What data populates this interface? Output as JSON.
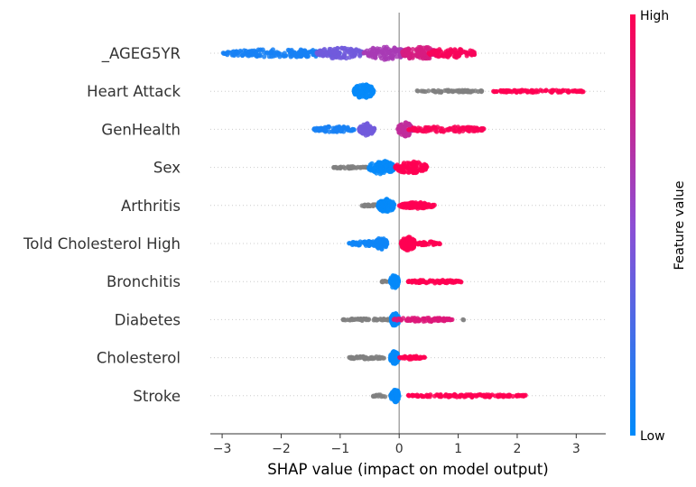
{
  "chart_data": {
    "type": "scatter",
    "subtype": "shap-beeswarm",
    "xlabel": "SHAP value (impact on model output)",
    "xlim": [
      -3.2,
      3.5
    ],
    "xticks": [
      -3,
      -2,
      -1,
      0,
      1,
      2,
      3
    ],
    "xtick_labels": [
      "−3",
      "−2",
      "−1",
      "0",
      "1",
      "2",
      "3"
    ],
    "colorbar": {
      "label": "Feature value",
      "high_label": "High",
      "low_label": "Low",
      "low_color": "#008bfb",
      "high_color": "#ff0052"
    },
    "colors": {
      "missing": "#808080",
      "axis": "#333333",
      "zero_line": "#999999",
      "row_guide": "#cccccc"
    },
    "features": [
      {
        "name": "_AGEG5YR",
        "clusters": [
          {
            "center": -2.0,
            "halfwidth": 1.0,
            "height": 0.2,
            "value": 0.08,
            "n": 170
          },
          {
            "center": -1.0,
            "halfwidth": 0.4,
            "height": 0.28,
            "value": 0.4,
            "n": 90
          },
          {
            "center": -0.25,
            "halfwidth": 0.35,
            "height": 0.34,
            "value": 0.62,
            "n": 110
          },
          {
            "center": 0.35,
            "halfwidth": 0.3,
            "height": 0.34,
            "value": 0.82,
            "n": 110
          },
          {
            "center": 0.9,
            "halfwidth": 0.4,
            "height": 0.24,
            "value": 0.97,
            "n": 90
          }
        ]
      },
      {
        "name": "Heart Attack",
        "clusters": [
          {
            "center": -0.6,
            "halfwidth": 0.17,
            "height": 0.36,
            "value": 0.02,
            "n": 110
          },
          {
            "center": 0.85,
            "halfwidth": 0.55,
            "height": 0.06,
            "value": null,
            "n": 70
          },
          {
            "center": 2.35,
            "halfwidth": 0.8,
            "height": 0.06,
            "value": 1.0,
            "n": 100
          }
        ]
      },
      {
        "name": "GenHealth",
        "clusters": [
          {
            "center": -1.1,
            "halfwidth": 0.35,
            "height": 0.15,
            "value": 0.08,
            "n": 70
          },
          {
            "center": -0.55,
            "halfwidth": 0.13,
            "height": 0.32,
            "value": 0.4,
            "n": 80
          },
          {
            "center": 0.1,
            "halfwidth": 0.12,
            "height": 0.36,
            "value": 0.72,
            "n": 80
          },
          {
            "center": 0.8,
            "halfwidth": 0.65,
            "height": 0.14,
            "value": 0.98,
            "n": 100
          }
        ]
      },
      {
        "name": "Sex",
        "clusters": [
          {
            "center": -0.85,
            "halfwidth": 0.3,
            "height": 0.05,
            "value": null,
            "n": 40
          },
          {
            "center": -0.3,
            "halfwidth": 0.22,
            "height": 0.36,
            "value": 0.02,
            "n": 120
          },
          {
            "center": 0.2,
            "halfwidth": 0.27,
            "height": 0.3,
            "value": 1.0,
            "n": 110
          }
        ]
      },
      {
        "name": "Arthritis",
        "clusters": [
          {
            "center": -0.45,
            "halfwidth": 0.22,
            "height": 0.05,
            "value": null,
            "n": 30
          },
          {
            "center": -0.22,
            "halfwidth": 0.14,
            "height": 0.34,
            "value": 0.02,
            "n": 100
          },
          {
            "center": 0.3,
            "halfwidth": 0.3,
            "height": 0.16,
            "value": 1.0,
            "n": 90
          }
        ]
      },
      {
        "name": "Told Cholesterol High",
        "clusters": [
          {
            "center": -0.55,
            "halfwidth": 0.3,
            "height": 0.12,
            "value": 0.05,
            "n": 60
          },
          {
            "center": -0.3,
            "halfwidth": 0.1,
            "height": 0.3,
            "value": 0.05,
            "n": 50
          },
          {
            "center": 0.15,
            "halfwidth": 0.12,
            "height": 0.36,
            "value": 1.0,
            "n": 90
          },
          {
            "center": 0.5,
            "halfwidth": 0.2,
            "height": 0.1,
            "value": 1.0,
            "n": 40
          }
        ]
      },
      {
        "name": "Bronchitis",
        "clusters": [
          {
            "center": -0.22,
            "halfwidth": 0.08,
            "height": 0.05,
            "value": null,
            "n": 10
          },
          {
            "center": -0.08,
            "halfwidth": 0.07,
            "height": 0.34,
            "value": 0.02,
            "n": 80
          },
          {
            "center": 0.6,
            "halfwidth": 0.45,
            "height": 0.08,
            "value": 1.0,
            "n": 100
          }
        ]
      },
      {
        "name": "Diabetes",
        "clusters": [
          {
            "center": -0.55,
            "halfwidth": 0.4,
            "height": 0.05,
            "value": null,
            "n": 60
          },
          {
            "center": -0.07,
            "halfwidth": 0.07,
            "height": 0.34,
            "value": 0.02,
            "n": 80
          },
          {
            "center": 0.4,
            "halfwidth": 0.5,
            "height": 0.1,
            "value": 0.85,
            "n": 90
          },
          {
            "center": 1.1,
            "halfwidth": 0.02,
            "height": 0.02,
            "value": null,
            "n": 2
          }
        ]
      },
      {
        "name": "Cholesterol",
        "clusters": [
          {
            "center": -0.55,
            "halfwidth": 0.3,
            "height": 0.07,
            "value": null,
            "n": 60
          },
          {
            "center": -0.08,
            "halfwidth": 0.07,
            "height": 0.34,
            "value": 0.02,
            "n": 80
          },
          {
            "center": 0.22,
            "halfwidth": 0.22,
            "height": 0.08,
            "value": 1.0,
            "n": 40
          }
        ]
      },
      {
        "name": "Stroke",
        "clusters": [
          {
            "center": -0.25,
            "halfwidth": 0.2,
            "height": 0.05,
            "value": null,
            "n": 20
          },
          {
            "center": -0.07,
            "halfwidth": 0.07,
            "height": 0.34,
            "value": 0.02,
            "n": 80
          },
          {
            "center": 1.15,
            "halfwidth": 1.0,
            "height": 0.07,
            "value": 1.0,
            "n": 130
          }
        ]
      }
    ]
  }
}
